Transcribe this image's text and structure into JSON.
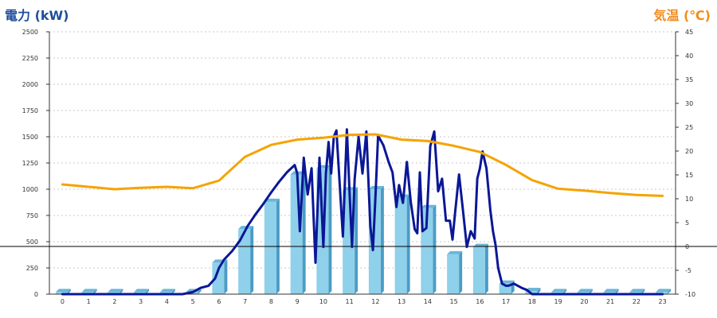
{
  "chart_data": {
    "type": "bar+line",
    "left_axis_title": "電力 (kW)",
    "right_axis_title": "気温 (℃)",
    "categories": [
      "0",
      "1",
      "2",
      "3",
      "4",
      "5",
      "6",
      "7",
      "8",
      "9",
      "10",
      "11",
      "12",
      "13",
      "14",
      "15",
      "16",
      "17",
      "18",
      "19",
      "20",
      "21",
      "22",
      "23"
    ],
    "ylim_left": [
      0,
      2500
    ],
    "yticks_left": [
      "0",
      "250",
      "500",
      "750",
      "1000",
      "1250",
      "1500",
      "1750",
      "2000",
      "2250",
      "2500"
    ],
    "ylim_right": [
      -10,
      45
    ],
    "yticks_right": [
      "-10",
      "-5",
      "0",
      "5",
      "10",
      "15",
      "20",
      "25",
      "30",
      "35",
      "40",
      "45"
    ],
    "grid": true,
    "colors": {
      "bar_front": "#8fd0ea",
      "bar_side": "#4a9cc4",
      "bar_top": "#6bb6d8",
      "power_line": "#0a1796",
      "temp_line": "#f5a300",
      "zero_line": "#000000",
      "grid": "#c8c8c8"
    },
    "series": [
      {
        "type": "bar",
        "values": [
          20,
          20,
          20,
          20,
          20,
          20,
          300,
          620,
          880,
          1140,
          1200,
          990,
          1000,
          920,
          820,
          380,
          450,
          100,
          30,
          20,
          20,
          20,
          20,
          20
        ]
      },
      {
        "type": "line",
        "axis": "left",
        "x": [
          0,
          4.6,
          5,
          5.3,
          5.6,
          5.85,
          6,
          6.2,
          6.5,
          6.8,
          7.1,
          7.4,
          7.7,
          8,
          8.3,
          8.6,
          8.9,
          9.0,
          9.1,
          9.25,
          9.4,
          9.55,
          9.7,
          9.85,
          10.0,
          10.1,
          10.2,
          10.3,
          10.4,
          10.5,
          10.6,
          10.75,
          10.9,
          11.0,
          11.1,
          11.2,
          11.35,
          11.5,
          11.65,
          11.8,
          11.9,
          12.0,
          12.1,
          12.3,
          12.5,
          12.65,
          12.8,
          12.9,
          13.05,
          13.2,
          13.35,
          13.5,
          13.6,
          13.7,
          13.8,
          13.95,
          14.1,
          14.25,
          14.4,
          14.55,
          14.7,
          14.85,
          14.95,
          15.05,
          15.2,
          15.35,
          15.5,
          15.65,
          15.8,
          15.9,
          16.0,
          16.1,
          16.25,
          16.4,
          16.5,
          16.6,
          16.7,
          16.85,
          17.0,
          17.1,
          17.3,
          17.6,
          17.8,
          18,
          23
        ],
        "values": [
          0,
          0,
          20,
          60,
          80,
          150,
          250,
          330,
          410,
          510,
          650,
          760,
          860,
          970,
          1070,
          1160,
          1230,
          1150,
          600,
          1300,
          950,
          1200,
          300,
          1300,
          450,
          1150,
          1450,
          1150,
          1500,
          1560,
          1160,
          550,
          1570,
          1000,
          450,
          1100,
          1500,
          1150,
          1550,
          650,
          420,
          950,
          1510,
          1420,
          1260,
          1160,
          830,
          1040,
          870,
          1260,
          880,
          620,
          580,
          1160,
          600,
          630,
          1410,
          1550,
          980,
          1100,
          700,
          700,
          520,
          780,
          1140,
          800,
          450,
          600,
          530,
          1100,
          1200,
          1360,
          1200,
          800,
          600,
          470,
          250,
          100,
          80,
          80,
          100,
          60,
          40,
          0,
          0
        ]
      },
      {
        "type": "line",
        "axis": "right",
        "x": [
          0,
          1,
          2,
          3,
          4,
          5,
          6,
          7,
          8,
          9,
          10,
          11,
          12,
          13,
          14,
          15,
          16,
          17,
          18,
          19,
          20,
          21,
          22,
          23
        ],
        "values": [
          13,
          12.5,
          12,
          12.3,
          12.5,
          12.2,
          13.8,
          18.8,
          21.3,
          22.4,
          22.8,
          23.4,
          23.5,
          22.4,
          22.1,
          21.1,
          19.8,
          17.1,
          13.9,
          12.1,
          11.7,
          11.2,
          10.8,
          10.6
        ]
      }
    ]
  }
}
